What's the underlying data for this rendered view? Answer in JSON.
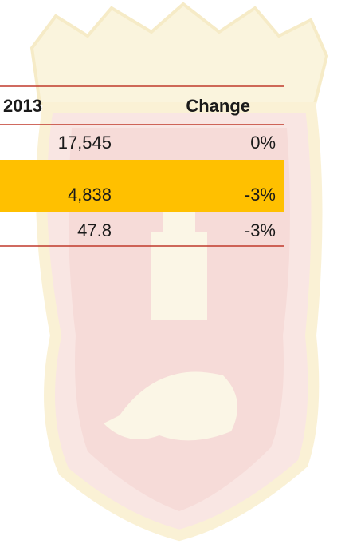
{
  "table": {
    "header": [
      "2013",
      "Change"
    ],
    "rows": [
      [
        "17,545",
        "0%"
      ],
      [
        "4,838",
        "-3%"
      ],
      [
        "47.8",
        "-3%"
      ]
    ]
  }
}
